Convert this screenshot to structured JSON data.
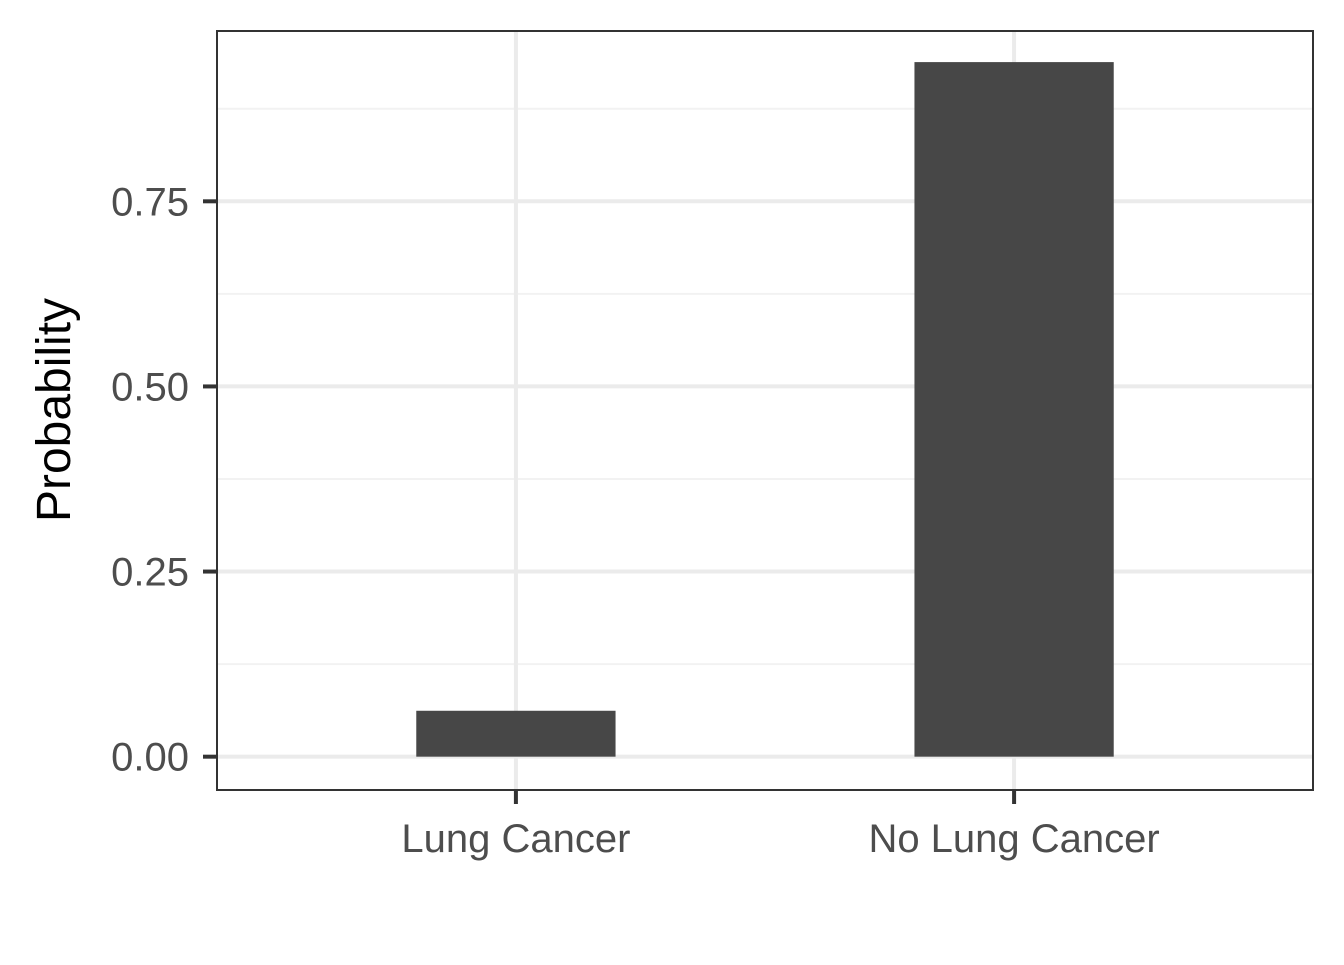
{
  "chart_data": {
    "type": "bar",
    "title": "",
    "xlabel": "",
    "ylabel": "Probability",
    "categories": [
      "Lung Cancer",
      "No Lung Cancer"
    ],
    "values": [
      0.062,
      0.938
    ],
    "ylim": [
      -0.045,
      0.98
    ],
    "yticks": [
      0,
      0.25,
      0.5,
      0.75
    ],
    "ytick_labels": [
      "0.00",
      "0.25",
      "0.50",
      "0.75"
    ],
    "y_minor_gridlines": [
      0.125,
      0.375,
      0.625,
      0.875
    ],
    "grid": true,
    "legend": "none",
    "colors": {
      "bar": "#474747",
      "panel_border": "#333333",
      "grid_major": "#ebebeb",
      "grid_minor": "#f2f2f2",
      "tick_label": "#4d4d4d",
      "axis_title": "#000000",
      "tick_mark": "#333333"
    }
  }
}
